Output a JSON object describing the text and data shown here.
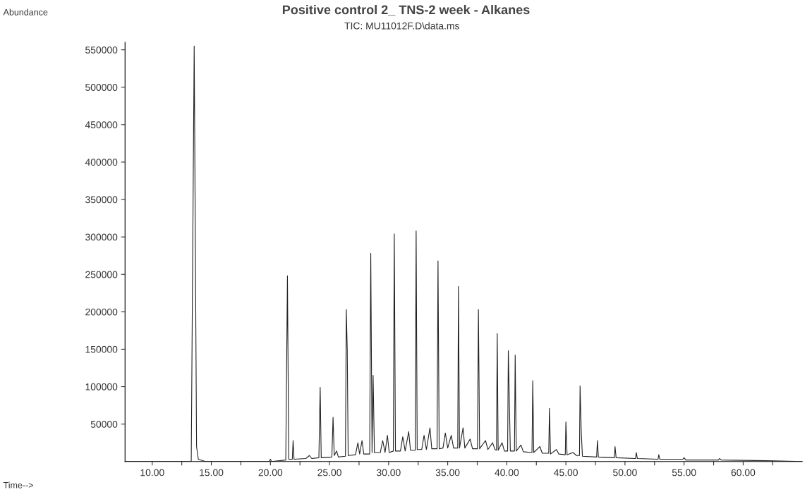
{
  "chart_data": {
    "type": "line",
    "title": "Positive control 2_ TNS-2 week - Alkanes",
    "annotations": [
      "TIC: MU11012F.D\\data.ms",
      "Abundance",
      "Time-->"
    ],
    "xlim": [
      7.7,
      65.0
    ],
    "ylim": [
      0,
      560000
    ],
    "xticks": [
      {
        "value": 10,
        "label": "10.00"
      },
      {
        "value": 12.5,
        "label": null
      },
      {
        "value": 15,
        "label": "15.00"
      },
      {
        "value": 17.5,
        "label": null
      },
      {
        "value": 20,
        "label": "20.00"
      },
      {
        "value": 22.5,
        "label": null
      },
      {
        "value": 25,
        "label": "25.00"
      },
      {
        "value": 27.5,
        "label": null
      },
      {
        "value": 30,
        "label": "30.00"
      },
      {
        "value": 32.5,
        "label": null
      },
      {
        "value": 35,
        "label": "35.00"
      },
      {
        "value": 37.5,
        "label": null
      },
      {
        "value": 40,
        "label": "40.00"
      },
      {
        "value": 42.5,
        "label": null
      },
      {
        "value": 45,
        "label": "45.00"
      },
      {
        "value": 47.5,
        "label": null
      },
      {
        "value": 50,
        "label": "50.00"
      },
      {
        "value": 52.5,
        "label": null
      },
      {
        "value": 55,
        "label": "55.00"
      },
      {
        "value": 57.5,
        "label": null
      },
      {
        "value": 60,
        "label": "60.00"
      },
      {
        "value": 62.5,
        "label": null
      }
    ],
    "yticks": [
      50000,
      100000,
      150000,
      200000,
      250000,
      300000,
      350000,
      400000,
      450000,
      500000,
      550000
    ],
    "grid": false,
    "marker": "none",
    "line_style": "solid",
    "series": [
      {
        "color": "#222222",
        "x": [
          7.7,
          13.3,
          13.55,
          13.75,
          13.9,
          14.5,
          19.9,
          20.0,
          20.1,
          21.3,
          21.44,
          21.55,
          21.85,
          21.92,
          22.0,
          23.0,
          23.3,
          23.5,
          24.1,
          24.21,
          24.3,
          25.2,
          25.3,
          25.4,
          25.6,
          25.75,
          26.35,
          26.42,
          26.5,
          26.58,
          27.2,
          27.4,
          27.55,
          27.75,
          27.9,
          28.4,
          28.49,
          28.6,
          28.69,
          28.8,
          29.3,
          29.5,
          29.7,
          29.9,
          30.05,
          30.4,
          30.48,
          30.58,
          31.0,
          31.2,
          31.4,
          31.7,
          31.85,
          32.25,
          32.33,
          32.42,
          32.8,
          33.0,
          33.2,
          33.5,
          33.65,
          34.1,
          34.18,
          34.28,
          34.6,
          34.8,
          35.0,
          35.3,
          35.5,
          35.85,
          35.91,
          36.0,
          36.3,
          36.45,
          36.9,
          37.1,
          37.52,
          37.6,
          37.7,
          38.2,
          38.4,
          38.8,
          39.0,
          39.13,
          39.19,
          39.27,
          39.6,
          39.8,
          40.07,
          40.13,
          40.3,
          40.65,
          40.71,
          40.8,
          41.2,
          41.4,
          42.13,
          42.2,
          42.28,
          42.8,
          43.0,
          43.55,
          43.61,
          43.7,
          44.2,
          44.4,
          44.95,
          45.0,
          45.1,
          45.6,
          45.9,
          46.15,
          46.2,
          46.3,
          46.4,
          47.6,
          47.67,
          47.75,
          49.1,
          49.16,
          49.25,
          50.9,
          50.95,
          51.05,
          52.8,
          52.86,
          52.95,
          54.9,
          55.0,
          55.15,
          57.9,
          58.0,
          58.15,
          62.0,
          65.0
        ],
        "values": [
          0,
          0,
          555000,
          20000,
          3000,
          0,
          0,
          3000,
          0,
          2000,
          248000,
          3000,
          3000,
          28000,
          3000,
          4000,
          8000,
          4000,
          5000,
          99000,
          5000,
          6000,
          59000,
          8000,
          14000,
          6000,
          7000,
          203000,
          150000,
          8000,
          9000,
          25000,
          10000,
          28000,
          10000,
          10000,
          278000,
          12000,
          115000,
          12000,
          12000,
          28000,
          12000,
          35000,
          12000,
          14000,
          304000,
          14000,
          14000,
          33000,
          14000,
          40000,
          15000,
          15000,
          308000,
          16000,
          16000,
          35000,
          16000,
          45000,
          17000,
          17000,
          268000,
          17000,
          18000,
          38000,
          18000,
          35000,
          18000,
          18000,
          234000,
          18000,
          45000,
          18000,
          30000,
          17000,
          17000,
          203000,
          17000,
          28000,
          16000,
          25000,
          16000,
          15000,
          171000,
          15000,
          25000,
          14000,
          14000,
          148000,
          14000,
          14000,
          142000,
          14000,
          22000,
          13000,
          12000,
          108000,
          12000,
          20000,
          11000,
          11000,
          71000,
          10000,
          16000,
          10000,
          9000,
          53000,
          9000,
          12000,
          8000,
          8000,
          101000,
          40000,
          7000,
          6000,
          28000,
          6000,
          5000,
          20000,
          5000,
          4000,
          12000,
          4000,
          3000,
          9000,
          3000,
          3000,
          5000,
          2000,
          2000,
          4000,
          2000,
          1000,
          0
        ]
      }
    ]
  }
}
